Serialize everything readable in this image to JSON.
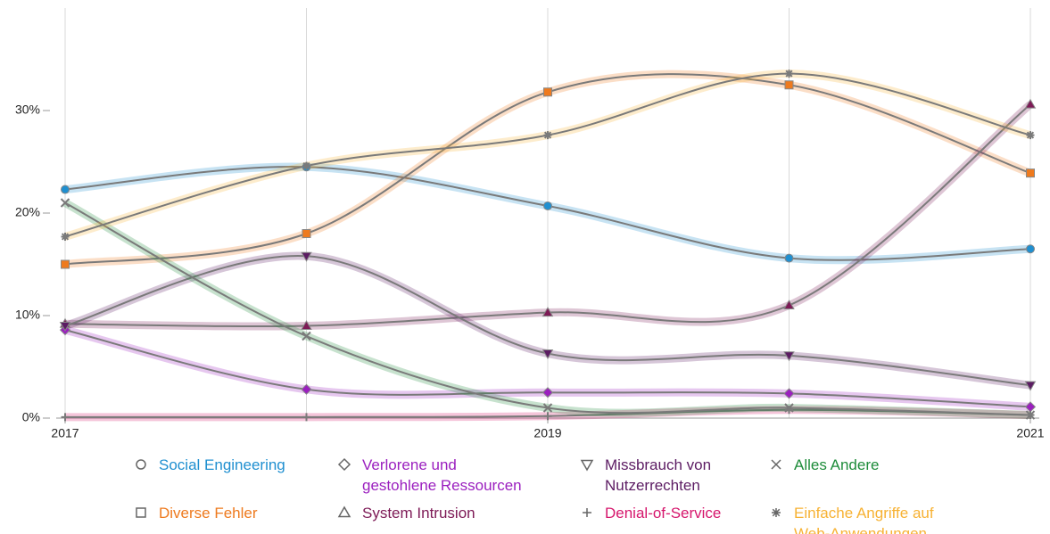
{
  "chart_data": {
    "type": "line",
    "x": [
      2017,
      2018,
      2019,
      2020,
      2021
    ],
    "xlim": [
      2017,
      2021
    ],
    "xticks": [
      2017,
      2019,
      2021
    ],
    "ylim": [
      0,
      40
    ],
    "yticks": [
      {
        "value": 0,
        "label": "0%"
      },
      {
        "value": 10,
        "label": "10%"
      },
      {
        "value": 20,
        "label": "20%"
      },
      {
        "value": 30,
        "label": "30%"
      }
    ],
    "grid": true,
    "line_color": "#7a7a7a",
    "series": [
      {
        "name": "Social Engineering",
        "color": "#1f8fd0",
        "marker": "circle",
        "values": [
          22.3,
          24.5,
          20.7,
          15.6,
          16.5
        ]
      },
      {
        "name": "Diverse Fehler",
        "color": "#ee7a1e",
        "marker": "square",
        "values": [
          15.0,
          18.0,
          31.8,
          32.5,
          23.9
        ]
      },
      {
        "name": "Verlorene und gestohlene Ressourcen",
        "color": "#9b1fbf",
        "marker": "diamond",
        "values": [
          8.6,
          2.8,
          2.5,
          2.4,
          1.1
        ]
      },
      {
        "name": "System Intrusion",
        "color": "#7d1a56",
        "marker": "triangle-up",
        "values": [
          9.2,
          9.0,
          10.3,
          11.0,
          30.6
        ]
      },
      {
        "name": "Missbrauch von Nutzerrechten",
        "color": "#5c1c63",
        "marker": "triangle-down",
        "values": [
          9.0,
          15.8,
          6.3,
          6.1,
          3.2
        ]
      },
      {
        "name": "Denial-of-Service",
        "color": "#d6176d",
        "marker": "plus",
        "values": [
          0.1,
          0.1,
          0.2,
          0.8,
          0.3
        ]
      },
      {
        "name": "Alles Andere",
        "color": "#1e8c3a",
        "marker": "x",
        "values": [
          21.0,
          8.0,
          1.0,
          1.0,
          0.3
        ]
      },
      {
        "name": "Einfache Angriffe auf Web-Anwendungen",
        "color": "#f7b234",
        "marker": "star",
        "values": [
          17.7,
          24.6,
          27.6,
          33.6,
          27.6
        ]
      }
    ]
  }
}
